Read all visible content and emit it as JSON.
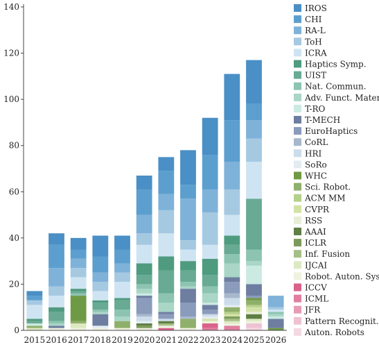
{
  "chart_data": {
    "type": "bar",
    "stacked": true,
    "title": "",
    "xlabel": "",
    "ylabel": "",
    "categories": [
      "2015",
      "2016",
      "2017",
      "2018",
      "2019",
      "2020",
      "2021",
      "2022",
      "2023",
      "2024",
      "2025",
      "2026"
    ],
    "ylim": [
      0,
      140
    ],
    "yticks": [
      0,
      20,
      40,
      60,
      80,
      100,
      120,
      140
    ],
    "grid": false,
    "legend_position": "right",
    "series": [
      {
        "name": "Auton. Robots",
        "color": "#f4d9e2",
        "values": [
          0,
          0,
          0,
          0,
          0,
          0,
          0,
          0,
          0,
          0,
          1,
          0
        ]
      },
      {
        "name": "Pattern Recognit.",
        "color": "#efc2d3",
        "values": [
          0,
          0,
          0,
          0,
          0,
          0,
          0,
          0,
          0,
          0,
          2,
          0
        ]
      },
      {
        "name": "JFR",
        "color": "#e79bb6",
        "values": [
          0,
          0,
          0,
          0,
          0,
          0,
          0,
          0,
          0,
          0,
          0,
          0
        ]
      },
      {
        "name": "ICML",
        "color": "#e07fa0",
        "values": [
          0,
          0,
          0,
          0,
          0,
          0,
          0,
          0,
          1,
          2,
          0,
          0
        ]
      },
      {
        "name": "ICCV",
        "color": "#d9628a",
        "values": [
          0,
          0,
          0,
          0,
          0,
          0,
          1,
          0,
          2,
          0,
          0,
          0
        ]
      },
      {
        "name": "Robot. Auton. Syst.",
        "color": "#eef2df",
        "values": [
          0,
          1,
          1,
          1,
          1,
          1,
          1,
          1,
          1,
          1,
          1,
          0
        ]
      },
      {
        "name": "IJCAI",
        "color": "#dde9c2",
        "values": [
          1,
          0,
          2,
          0,
          0,
          0,
          0,
          0,
          0,
          1,
          1,
          0
        ]
      },
      {
        "name": "Inf. Fusion",
        "color": "#a6bf86",
        "values": [
          0,
          0,
          0,
          0,
          0,
          0,
          1,
          0,
          0,
          1,
          0,
          0
        ]
      },
      {
        "name": "ICLR",
        "color": "#7c9a5b",
        "values": [
          0,
          0,
          0,
          0,
          0,
          1,
          0,
          0,
          0,
          1,
          0,
          0
        ]
      },
      {
        "name": "AAAI",
        "color": "#5f7f44",
        "values": [
          0,
          0,
          0,
          0,
          0,
          1,
          1,
          0,
          0,
          0,
          2,
          0
        ]
      },
      {
        "name": "RSS",
        "color": "#e8eed6",
        "values": [
          0,
          0,
          0,
          0,
          0,
          0,
          0,
          0,
          0,
          0,
          1,
          0
        ]
      },
      {
        "name": "CVPR",
        "color": "#d2e2a6",
        "values": [
          0,
          0,
          0,
          0,
          0,
          0,
          0,
          0,
          1,
          1,
          2,
          0
        ]
      },
      {
        "name": "ACM MM",
        "color": "#b6cf8a",
        "values": [
          0,
          0,
          0,
          0,
          0,
          0,
          0,
          0,
          0,
          1,
          1,
          0
        ]
      },
      {
        "name": "Sci. Robot.",
        "color": "#8fb06a",
        "values": [
          1,
          0,
          1,
          0,
          3,
          0,
          0,
          4,
          0,
          2,
          2,
          0
        ]
      },
      {
        "name": "WHC",
        "color": "#6f9a45",
        "values": [
          0,
          0,
          11,
          0,
          0,
          0,
          0,
          0,
          0,
          0,
          1,
          1
        ]
      },
      {
        "name": "SoRo",
        "color": "#e3ecf3",
        "values": [
          0,
          0,
          0,
          1,
          0,
          1,
          0,
          0,
          1,
          1,
          0,
          0
        ]
      },
      {
        "name": "HRI",
        "color": "#ccdcea",
        "values": [
          0,
          0,
          0,
          0,
          0,
          2,
          1,
          0,
          1,
          3,
          0,
          0
        ]
      },
      {
        "name": "CoRL",
        "color": "#a8b8cc",
        "values": [
          0,
          0,
          0,
          0,
          0,
          1,
          0,
          1,
          0,
          2,
          0,
          0
        ]
      },
      {
        "name": "EuroHaptics",
        "color": "#8a9bbb",
        "values": [
          0,
          0,
          0,
          0,
          0,
          7,
          2,
          6,
          2,
          5,
          1,
          0
        ]
      },
      {
        "name": "T-MECH",
        "color": "#6e7ea1",
        "values": [
          0,
          1,
          0,
          5,
          0,
          1,
          1,
          6,
          2,
          2,
          5,
          4
        ]
      },
      {
        "name": "T-RO",
        "color": "#cbeae2",
        "values": [
          1,
          0,
          0,
          0,
          0,
          1,
          0,
          0,
          1,
          0,
          8,
          1
        ]
      },
      {
        "name": "Adv. Funct. Mater.",
        "color": "#a9d6c6",
        "values": [
          0,
          1,
          0,
          1,
          2,
          2,
          4,
          1,
          4,
          6,
          2,
          1
        ]
      },
      {
        "name": "Nat. Commun.",
        "color": "#8cc4b1",
        "values": [
          0,
          1,
          1,
          1,
          3,
          2,
          4,
          2,
          3,
          4,
          5,
          1
        ]
      },
      {
        "name": "UIST",
        "color": "#68aa93",
        "values": [
          1,
          4,
          1,
          3,
          4,
          4,
          10,
          5,
          5,
          4,
          22,
          0
        ]
      },
      {
        "name": "Haptics Symp.",
        "color": "#4f9b80",
        "values": [
          1,
          2,
          1,
          1,
          1,
          5,
          6,
          4,
          7,
          4,
          0,
          0
        ]
      },
      {
        "name": "ICRA",
        "color": "#cfe4f2",
        "values": [
          6,
          5,
          5,
          4,
          7,
          8,
          10,
          5,
          6,
          9,
          16,
          1
        ]
      },
      {
        "name": "ToH",
        "color": "#a6c9e2",
        "values": [
          2,
          4,
          4,
          4,
          4,
          5,
          10,
          4,
          14,
          11,
          10,
          1
        ]
      },
      {
        "name": "RA-L",
        "color": "#7fb2d9",
        "values": [
          0,
          8,
          4,
          4,
          4,
          8,
          7,
          18,
          10,
          12,
          8,
          5
        ]
      },
      {
        "name": "CHI",
        "color": "#5c9fcf",
        "values": [
          2,
          10,
          4,
          7,
          6,
          11,
          10,
          6,
          15,
          18,
          7,
          0
        ]
      },
      {
        "name": "IROS",
        "color": "#4a8fc5",
        "values": [
          2,
          5,
          5,
          9,
          6,
          6,
          6,
          15,
          16,
          20,
          19,
          0
        ]
      }
    ]
  }
}
